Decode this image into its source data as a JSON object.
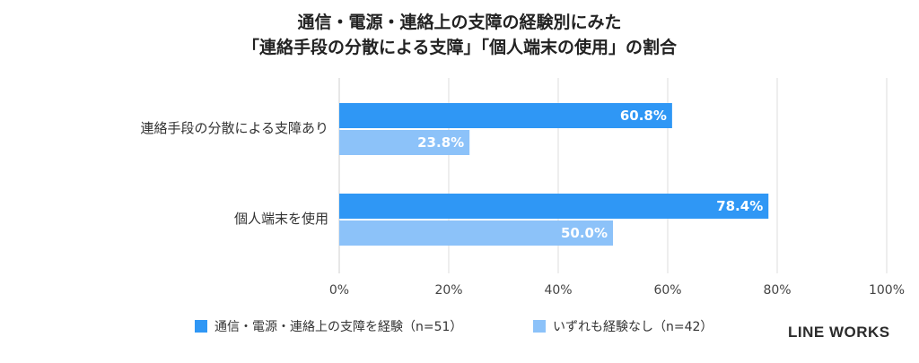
{
  "title_line1": "通信・電源・連絡上の支障の経験別にみた",
  "title_line2": "「連絡手段の分散による支障」「個人端末の使用」の割合",
  "brand": "LINE WORKS",
  "chart_data": {
    "type": "bar",
    "orientation": "horizontal",
    "title": "通信・電源・連絡上の支障の経験別にみた「連絡手段の分散による支障」「個人端末の使用」の割合",
    "categories": [
      "連絡手段の分散による支障あり",
      "個人端末を使用"
    ],
    "series": [
      {
        "name": "通信・電源・連絡上の支障を経験（n=51）",
        "values": [
          60.8,
          78.4
        ],
        "labels": [
          "60.8%",
          "78.4%"
        ],
        "color": "#2F97F5"
      },
      {
        "name": "いずれも経験なし（n=42）",
        "values": [
          23.8,
          50.0
        ],
        "labels": [
          "23.8%",
          "50.0%"
        ],
        "color": "#8CC2F9"
      }
    ],
    "xlim": [
      0,
      100
    ],
    "xticks": [
      0,
      20,
      40,
      60,
      80,
      100
    ],
    "xtick_labels": [
      "0%",
      "20%",
      "40%",
      "60%",
      "80%",
      "100%"
    ],
    "grid": true,
    "legend": "bottom"
  }
}
